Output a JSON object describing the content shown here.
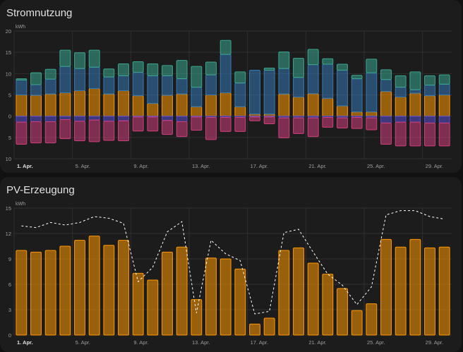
{
  "cards": [
    {
      "title": "Stromnutzung"
    },
    {
      "title": "PV-Erzeugung"
    }
  ],
  "colors": {
    "background": "#111111",
    "card": "#1c1c1c",
    "grid": "#2f2f2f",
    "text": "#e1e1e1",
    "axis_text": "#9e9e9e",
    "solar": "#ff9800",
    "grid_import": "#3579b5",
    "battery_discharge": "#3ba690",
    "battery_charge": "#5a4fcf",
    "grid_export": "#d03e7b",
    "forecast_line": "#ffffff"
  },
  "chart_data": [
    {
      "type": "bar",
      "title": "Stromnutzung",
      "ylabel": "kWh",
      "ylim": [
        -10,
        20
      ],
      "yticks": [
        -10,
        -5,
        0,
        5,
        10,
        15,
        20
      ],
      "ytick_labels": [
        "10",
        "5",
        "0",
        "5",
        "10",
        "15",
        "20"
      ],
      "grid": true,
      "categories": [
        "1. Apr.",
        "2. Apr.",
        "3. Apr.",
        "4. Apr.",
        "5. Apr.",
        "6. Apr.",
        "7. Apr.",
        "8. Apr.",
        "9. Apr.",
        "10. Apr.",
        "11. Apr.",
        "12. Apr.",
        "13. Apr.",
        "14. Apr.",
        "15. Apr.",
        "16. Apr.",
        "17. Apr.",
        "18. Apr.",
        "19. Apr.",
        "20. Apr.",
        "21. Apr.",
        "22. Apr.",
        "23. Apr.",
        "24. Apr.",
        "25. Apr.",
        "26. Apr.",
        "27. Apr.",
        "28. Apr.",
        "29. Apr.",
        "30. Apr."
      ],
      "xtick_labels": [
        "1. Apr.",
        "5. Apr.",
        "9. Apr.",
        "13. Apr.",
        "17. Apr.",
        "21. Apr.",
        "25. Apr.",
        "29. Apr."
      ],
      "xtick_indices": [
        0,
        4,
        8,
        12,
        16,
        20,
        24,
        28
      ],
      "series": [
        {
          "color_key": "solar",
          "values": [
            5.0,
            4.9,
            5.2,
            5.5,
            6.0,
            6.5,
            5.2,
            6.0,
            4.8,
            3.0,
            4.9,
            5.2,
            2.2,
            5.0,
            5.5,
            2.2,
            0.5,
            0.5,
            5.2,
            4.5,
            5.3,
            4.2,
            2.4,
            1.0,
            1.0,
            5.8,
            4.5,
            5.4,
            4.8,
            5.0
          ]
        },
        {
          "color_key": "grid_import",
          "values": [
            3.5,
            2.5,
            3.5,
            6.2,
            5.2,
            5.0,
            4.0,
            3.5,
            5.5,
            6.5,
            4.6,
            3.6,
            4.6,
            4.7,
            9.0,
            5.6,
            10.3,
            10.3,
            6.0,
            4.6,
            6.8,
            8.0,
            8.4,
            7.8,
            9.2,
            2.8,
            2.3,
            0.8,
            2.5,
            2.5
          ]
        },
        {
          "color_key": "battery_discharge",
          "values": [
            0.3,
            2.8,
            2.3,
            3.8,
            3.7,
            4.0,
            1.9,
            2.8,
            2.5,
            2.8,
            2.4,
            4.3,
            4.9,
            3.0,
            3.3,
            2.6,
            0.0,
            0.5,
            3.9,
            4.5,
            3.6,
            1.3,
            1.4,
            0.8,
            3.2,
            2.3,
            2.7,
            4.2,
            2.2,
            2.2
          ]
        },
        {
          "color_key": "battery_charge",
          "values": [
            -1.4,
            -1.3,
            -1.3,
            -0.8,
            -1.2,
            -0.9,
            -1.2,
            -1.1,
            -0.2,
            -0.2,
            -1.0,
            -1.3,
            -0.2,
            -0.3,
            -0.3,
            -0.3,
            -0.2,
            -0.2,
            -0.4,
            -0.4,
            -0.4,
            -0.3,
            -0.4,
            -0.3,
            -0.4,
            -1.6,
            -1.4,
            -1.4,
            -1.6,
            -1.6
          ]
        },
        {
          "color_key": "grid_export",
          "values": [
            -5.2,
            -5.0,
            -5.0,
            -4.5,
            -4.6,
            -5.1,
            -4.5,
            -4.7,
            -3.3,
            -3.3,
            -3.3,
            -3.5,
            -3.1,
            -5.2,
            -3.3,
            -3.3,
            -0.9,
            -1.6,
            -4.7,
            -3.7,
            -4.4,
            -2.3,
            -2.4,
            -2.6,
            -2.8,
            -5.0,
            -5.6,
            -5.6,
            -5.4,
            -5.4
          ]
        }
      ]
    },
    {
      "type": "bar",
      "title": "PV-Erzeugung",
      "ylabel": "kWh",
      "ylim": [
        0,
        15
      ],
      "yticks": [
        0,
        3,
        6,
        9,
        12,
        15
      ],
      "grid": true,
      "categories": [
        "1. Apr.",
        "2. Apr.",
        "3. Apr.",
        "4. Apr.",
        "5. Apr.",
        "6. Apr.",
        "7. Apr.",
        "8. Apr.",
        "9. Apr.",
        "10. Apr.",
        "11. Apr.",
        "12. Apr.",
        "13. Apr.",
        "14. Apr.",
        "15. Apr.",
        "16. Apr.",
        "17. Apr.",
        "18. Apr.",
        "19. Apr.",
        "20. Apr.",
        "21. Apr.",
        "22. Apr.",
        "23. Apr.",
        "24. Apr.",
        "25. Apr.",
        "26. Apr.",
        "27. Apr.",
        "28. Apr.",
        "29. Apr.",
        "30. Apr."
      ],
      "xtick_labels": [
        "1. Apr.",
        "5. Apr.",
        "9. Apr.",
        "13. Apr.",
        "17. Apr.",
        "21. Apr.",
        "25. Apr.",
        "29. Apr."
      ],
      "xtick_indices": [
        0,
        4,
        8,
        12,
        16,
        20,
        24,
        28
      ],
      "series": [
        {
          "color_key": "solar",
          "values": [
            10.0,
            9.8,
            10.0,
            10.5,
            11.2,
            11.7,
            10.6,
            11.2,
            7.3,
            6.5,
            9.8,
            10.4,
            4.2,
            9.1,
            9.0,
            7.8,
            1.3,
            2.0,
            10.0,
            10.3,
            8.5,
            7.2,
            5.5,
            2.9,
            3.7,
            11.3,
            10.4,
            11.3,
            10.3,
            10.4
          ]
        }
      ],
      "forecast": [
        12.9,
        12.7,
        13.3,
        13.0,
        13.3,
        14.0,
        13.8,
        13.2,
        6.3,
        8.0,
        12.2,
        13.4,
        2.6,
        11.2,
        9.6,
        8.8,
        2.5,
        2.8,
        12.1,
        12.5,
        9.8,
        7.2,
        5.9,
        3.6,
        5.7,
        14.2,
        14.7,
        14.7,
        14.0,
        13.7
      ]
    }
  ]
}
